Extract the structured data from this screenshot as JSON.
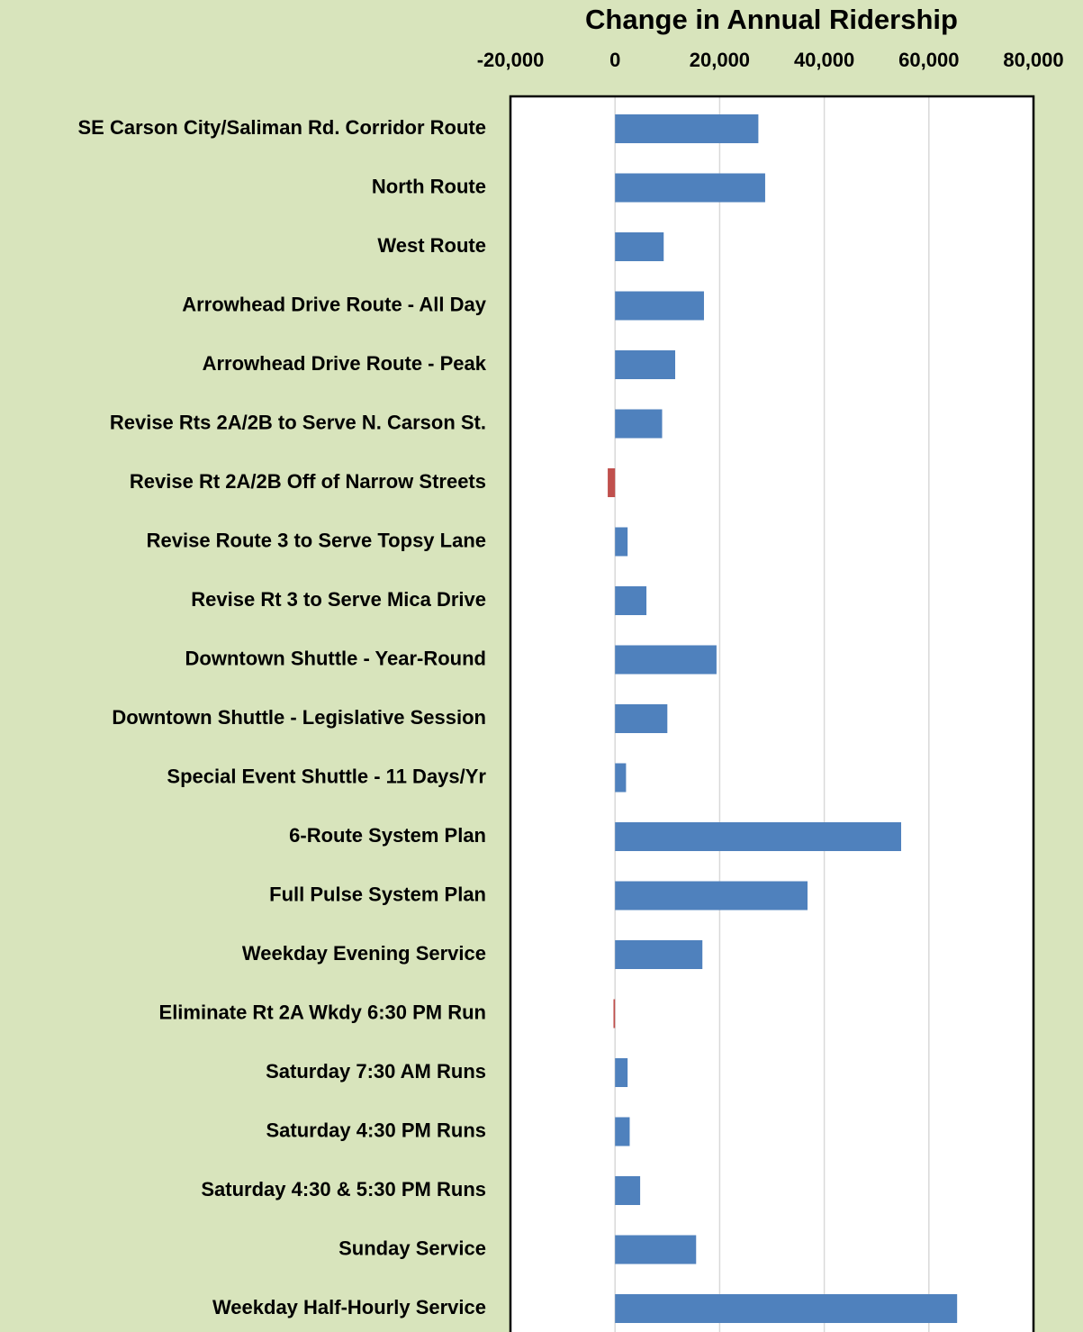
{
  "chart_data": {
    "type": "barh",
    "title": "Change in Annual Ridership",
    "categories": [
      "SE Carson City/Saliman Rd. Corridor Route",
      "North Route",
      "West Route",
      "Arrowhead Drive Route - All Day",
      "Arrowhead Drive Route - Peak",
      "Revise Rts 2A/2B to Serve N. Carson St.",
      "Revise Rt 2A/2B Off of Narrow Streets",
      "Revise Route 3 to Serve Topsy Lane",
      "Revise Rt 3 to Serve Mica Drive",
      "Downtown Shuttle - Year-Round",
      "Downtown Shuttle - Legislative Session",
      "Special Event Shuttle - 11 Days/Yr",
      "6-Route System Plan",
      "Full Pulse System Plan",
      "Weekday Evening Service",
      "Eliminate Rt 2A Wkdy 6:30 PM Run",
      "Saturday 7:30 AM Runs",
      "Saturday 4:30 PM Runs",
      "Saturday 4:30 & 5:30 PM Runs",
      "Sunday Service",
      "Weekday Half-Hourly Service"
    ],
    "values": [
      27400,
      28700,
      9300,
      17000,
      11500,
      9000,
      -1400,
      2400,
      6000,
      19400,
      10000,
      2100,
      54700,
      36800,
      16700,
      -300,
      2400,
      2800,
      4800,
      15500,
      65400
    ],
    "color": "#4f81bd",
    "negative_color": "#c0504d",
    "xlim": [
      -20000,
      80000
    ],
    "xticks": [
      {
        "value": -20000,
        "label": "-20,000"
      },
      0,
      {
        "value": 20000,
        "label": "20,000"
      },
      {
        "value": 40000,
        "label": "40,000"
      },
      {
        "value": 60000,
        "label": "60,000"
      },
      {
        "value": 80000,
        "label": "80,000"
      }
    ],
    "grid": true,
    "xaxis_position": "top"
  }
}
